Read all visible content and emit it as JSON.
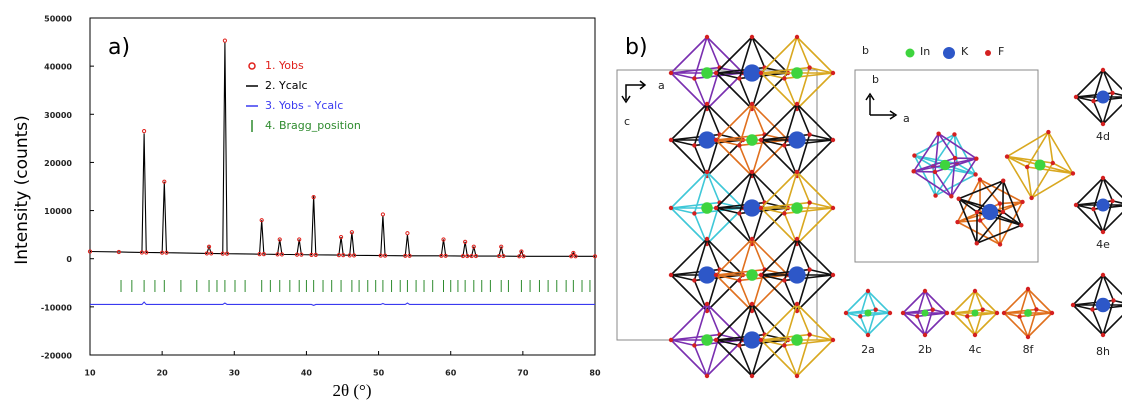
{
  "chart_data": {
    "type": "line",
    "panel_label": "a)",
    "x_label": "2θ (°)",
    "y_label": "Intensity (counts)",
    "xlim": [
      10,
      80
    ],
    "xticks": [
      10,
      20,
      30,
      40,
      50,
      60,
      70,
      80
    ],
    "ylim": [
      -20000,
      50000
    ],
    "yticks": [
      -20000,
      -10000,
      0,
      10000,
      20000,
      30000,
      40000,
      50000
    ],
    "x": [
      10,
      14,
      17.2,
      17.5,
      17.8,
      20,
      20.3,
      20.6,
      26.2,
      26.5,
      26.8,
      28.4,
      28.7,
      29,
      33.5,
      33.8,
      34.1,
      36,
      36.3,
      36.6,
      38.7,
      39,
      39.3,
      40.7,
      41,
      41.3,
      44.5,
      44.8,
      45.1,
      46,
      46.3,
      46.6,
      50.3,
      50.6,
      50.9,
      53.7,
      54,
      54.3,
      58.7,
      59,
      59.3,
      61.7,
      62,
      62.3,
      62.9,
      63.2,
      63.5,
      66.7,
      67,
      67.3,
      69.5,
      69.8,
      70.1,
      76.7,
      77,
      77.3,
      80
    ],
    "series": [
      {
        "name": "1. Yobs",
        "color": "#e0201b",
        "marker": "circle",
        "values": [
          1500,
          1400,
          1300,
          26500,
          1300,
          1250,
          16000,
          1250,
          1100,
          2500,
          1100,
          1050,
          45300,
          1050,
          950,
          8000,
          950,
          900,
          4000,
          900,
          850,
          4000,
          850,
          800,
          12800,
          800,
          750,
          4500,
          750,
          700,
          5500,
          700,
          650,
          9200,
          650,
          600,
          5300,
          600,
          600,
          4000,
          600,
          550,
          3500,
          550,
          550,
          2500,
          550,
          550,
          2500,
          550,
          500,
          1500,
          500,
          500,
          1200,
          500,
          500
        ]
      },
      {
        "name": "2. Ycalc",
        "color": "#000000",
        "marker": "line",
        "values": [
          1500,
          1400,
          1300,
          26000,
          1300,
          1250,
          16000,
          1250,
          1100,
          2500,
          1100,
          1050,
          45000,
          1050,
          950,
          8000,
          950,
          900,
          4000,
          900,
          850,
          4000,
          850,
          800,
          13000,
          800,
          750,
          4500,
          750,
          700,
          5500,
          700,
          650,
          9000,
          650,
          600,
          5000,
          600,
          600,
          4000,
          600,
          550,
          3500,
          550,
          550,
          2500,
          550,
          550,
          2500,
          550,
          500,
          1500,
          500,
          500,
          1200,
          500,
          500
        ]
      },
      {
        "name": "3. Yobs - Ycalc",
        "color": "#3a3af0",
        "marker": "line",
        "values": [
          -9500,
          -9500,
          -9500,
          -9000,
          -9500,
          -9500,
          -9500,
          -9500,
          -9500,
          -9500,
          -9500,
          -9500,
          -9200,
          -9500,
          -9500,
          -9500,
          -9500,
          -9500,
          -9500,
          -9500,
          -9500,
          -9500,
          -9500,
          -9500,
          -9700,
          -9500,
          -9500,
          -9500,
          -9500,
          -9500,
          -9500,
          -9500,
          -9500,
          -9300,
          -9500,
          -9500,
          -9200,
          -9500,
          -9500,
          -9500,
          -9500,
          -9500,
          -9500,
          -9500,
          -9500,
          -9500,
          -9500,
          -9500,
          -9500,
          -9500,
          -9500,
          -9500,
          -9500,
          -9500,
          -9500,
          -9500,
          -9500
        ]
      },
      {
        "name": "4. Bragg_position",
        "color": "#2e8b2e",
        "marker": "tick",
        "x": [
          14.3,
          15.8,
          17.5,
          19.0,
          20.3,
          22.6,
          24.8,
          26.5,
          27.6,
          28.7,
          30.1,
          31.5,
          33.8,
          35.0,
          36.3,
          37.7,
          39.0,
          40.0,
          41.0,
          42.3,
          43.5,
          44.8,
          46.3,
          47.3,
          48.5,
          49.6,
          50.6,
          51.8,
          53.0,
          54.0,
          55.2,
          56.3,
          57.5,
          59.0,
          60.0,
          61.0,
          62.0,
          63.2,
          64.3,
          65.5,
          67.0,
          68.0,
          69.8,
          71.0,
          72.3,
          73.5,
          74.7,
          76.0,
          77.0,
          78.2,
          79.3
        ]
      }
    ]
  },
  "diagram": {
    "panel_label": "b)",
    "axis_c_a": "a",
    "axis_c_c": "c",
    "axis_ab_b": "b",
    "axis_ab_a": "a",
    "legend_head": "b",
    "legend": [
      "In",
      "K",
      "F"
    ],
    "sites": [
      "2a",
      "2b",
      "4c",
      "8f",
      "8h",
      "4d",
      "4e"
    ]
  }
}
